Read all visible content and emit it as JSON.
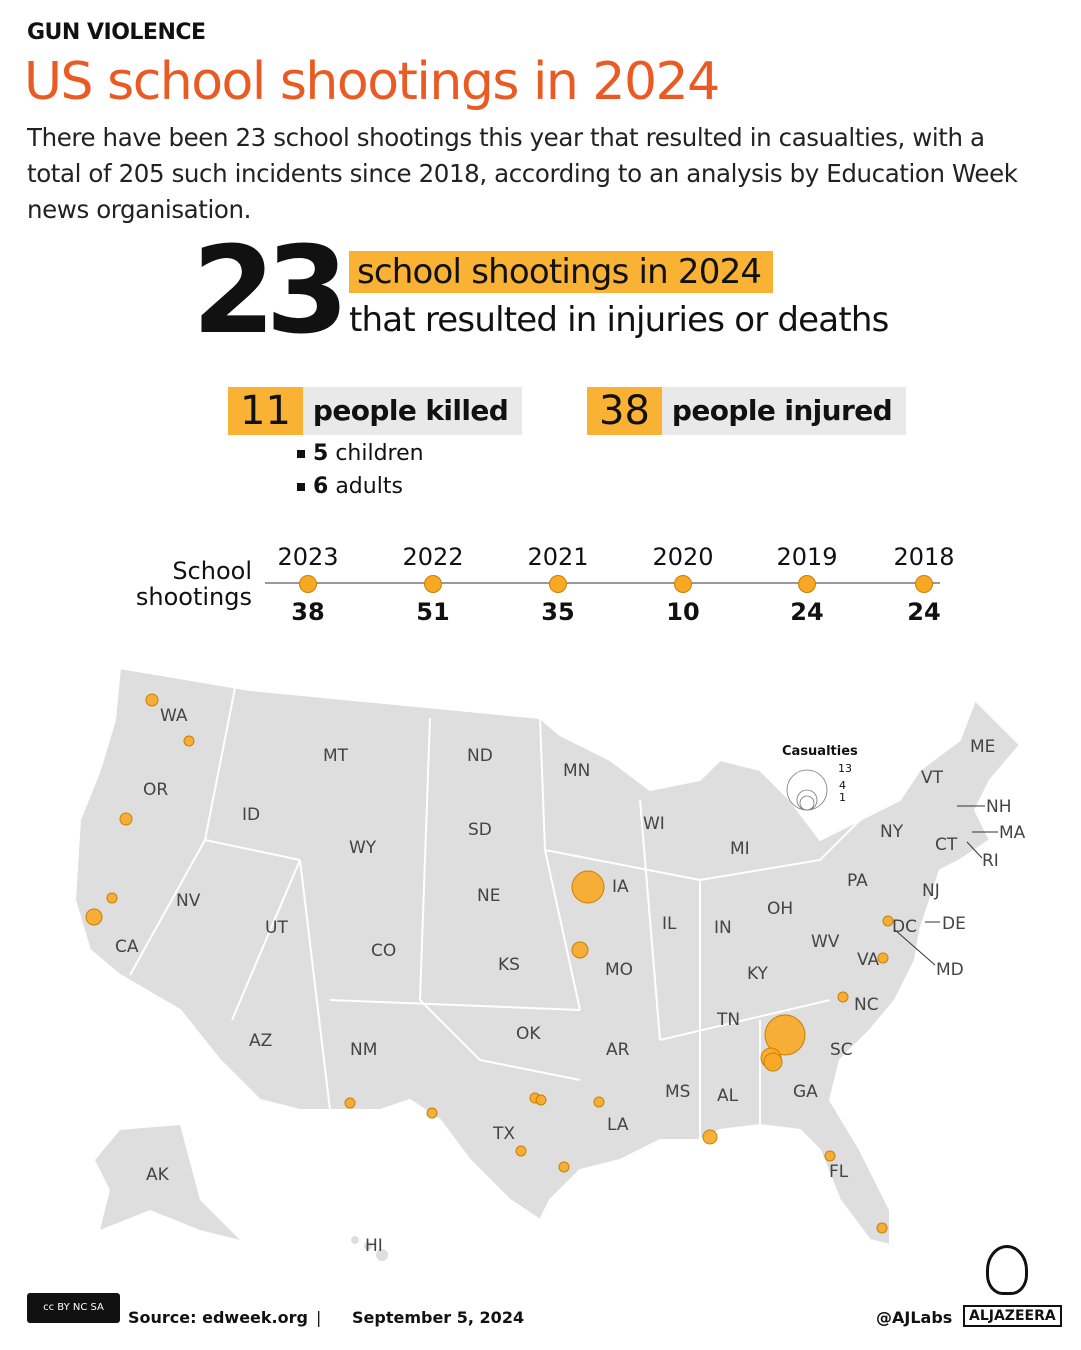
{
  "header": {
    "kicker": "GUN VIOLENCE",
    "title": "US school shootings in 2024",
    "intro": "There have been 23 school shootings this year that resulted in casualties, with a total of 205 such incidents since 2018, according to an analysis by Education Week news organisation."
  },
  "headline": {
    "number": "23",
    "highlight": "school shootings in 2024",
    "subtext": "that resulted in injuries or deaths"
  },
  "stats": {
    "killed": {
      "value": "11",
      "label": "people killed",
      "breakdown": [
        {
          "n": "5",
          "label": "children"
        },
        {
          "n": "6",
          "label": "adults"
        }
      ]
    },
    "injured": {
      "value": "38",
      "label": "people injured"
    }
  },
  "timeline": {
    "label": "School shootings",
    "years": [
      {
        "year": "2023",
        "value": "38"
      },
      {
        "year": "2022",
        "value": "51"
      },
      {
        "year": "2021",
        "value": "35"
      },
      {
        "year": "2020",
        "value": "10"
      },
      {
        "year": "2019",
        "value": "24"
      },
      {
        "year": "2018",
        "value": "24"
      }
    ]
  },
  "map": {
    "legend": {
      "title": "Casualties",
      "sizes": [
        "13",
        "4",
        "1"
      ]
    },
    "states": [
      "WA",
      "OR",
      "CA",
      "NV",
      "ID",
      "MT",
      "WY",
      "UT",
      "AZ",
      "CO",
      "NM",
      "ND",
      "SD",
      "NE",
      "KS",
      "OK",
      "TX",
      "MN",
      "IA",
      "MO",
      "AR",
      "LA",
      "WI",
      "IL",
      "MI",
      "IN",
      "OH",
      "KY",
      "TN",
      "MS",
      "AL",
      "GA",
      "FL",
      "SC",
      "NC",
      "VA",
      "WV",
      "PA",
      "NY",
      "VT",
      "ME",
      "NH",
      "MA",
      "RI",
      "CT",
      "NJ",
      "DE",
      "MD",
      "DC",
      "AK",
      "HI"
    ],
    "colors": {
      "land": "#dedede",
      "bubble": "#f9a825",
      "bubble_stroke": "#c97f00"
    }
  },
  "colors": {
    "title": "#ea5a23",
    "highlight": "#f9b234"
  },
  "footer": {
    "license": "cc BY NC SA",
    "source": "Source:  edweek.org",
    "separator": "|",
    "date": "September 5, 2024",
    "handle": "@AJLabs",
    "brand": "ALJAZEERA"
  }
}
